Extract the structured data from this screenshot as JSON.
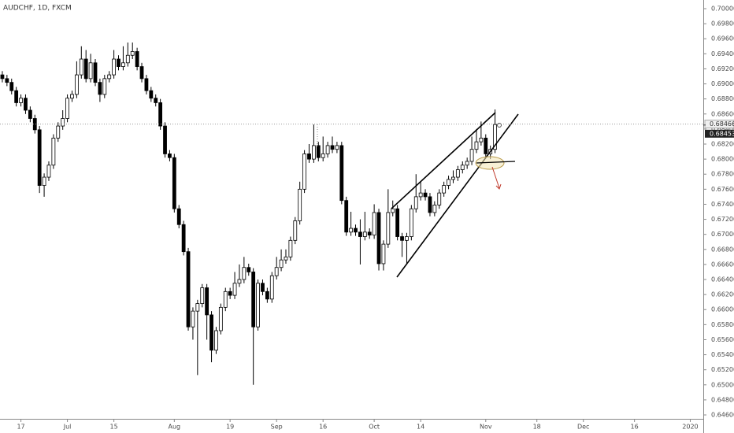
{
  "chart_data": {
    "type": "candlestick",
    "title": "AUDCHF, 1D, FXCM",
    "up_color": "#ffffff",
    "down_color": "#000000",
    "open": [
      0.6912,
      0.6907,
      0.6902,
      0.6891,
      0.6875,
      0.6881,
      0.6865,
      0.6854,
      0.6839,
      0.6765,
      0.6776,
      0.6792,
      0.6828,
      0.6844,
      0.6854,
      0.6881,
      0.6886,
      0.6912,
      0.6933,
      0.6907,
      0.6928,
      0.6902,
      0.6886,
      0.6907,
      0.6912,
      0.6933,
      0.6923,
      0.6928,
      0.6938,
      0.6943,
      0.6923,
      0.6907,
      0.6891,
      0.6881,
      0.6875,
      0.6844,
      0.6807,
      0.6802,
      0.6734,
      0.6713,
      0.6677,
      0.6577,
      0.6598,
      0.6608,
      0.6629,
      0.6593,
      0.6546,
      0.6572,
      0.6603,
      0.6624,
      0.6619,
      0.6635,
      0.664,
      0.6656,
      0.665,
      0.6577,
      0.6635,
      0.6624,
      0.6614,
      0.6645,
      0.6656,
      0.6666,
      0.667,
      0.6692,
      0.6718,
      0.676,
      0.6807,
      0.68,
      0.6818,
      0.6802,
      0.6807,
      0.6818,
      0.6813,
      0.6818,
      0.6745,
      0.6703,
      0.6708,
      0.6703,
      0.6697,
      0.6703,
      0.6699,
      0.6729,
      0.6661,
      0.6687,
      0.6729,
      0.6734,
      0.6697,
      0.6692,
      0.6697,
      0.6734,
      0.675,
      0.6755,
      0.675,
      0.6729,
      0.6739,
      0.6755,
      0.6765,
      0.6773,
      0.6776,
      0.6786,
      0.6792,
      0.6797,
      0.6813,
      0.6823,
      0.6828,
      0.6807,
      0.6813
    ],
    "high": [
      0.6917,
      0.6912,
      0.6907,
      0.6896,
      0.6886,
      0.6886,
      0.687,
      0.6859,
      0.6844,
      0.6781,
      0.6797,
      0.6833,
      0.6849,
      0.6865,
      0.6886,
      0.6891,
      0.693,
      0.695,
      0.6945,
      0.694,
      0.6933,
      0.6907,
      0.6912,
      0.6917,
      0.6945,
      0.6938,
      0.695,
      0.6955,
      0.6955,
      0.6948,
      0.6928,
      0.6912,
      0.6896,
      0.6886,
      0.688,
      0.6849,
      0.6812,
      0.6807,
      0.6739,
      0.6718,
      0.6682,
      0.6603,
      0.6613,
      0.6634,
      0.6634,
      0.6598,
      0.6577,
      0.6608,
      0.6629,
      0.6629,
      0.665,
      0.666,
      0.667,
      0.6661,
      0.6655,
      0.664,
      0.664,
      0.6629,
      0.665,
      0.667,
      0.668,
      0.668,
      0.6697,
      0.6723,
      0.677,
      0.6812,
      0.682,
      0.6846,
      0.6823,
      0.683,
      0.6823,
      0.683,
      0.6823,
      0.6823,
      0.675,
      0.673,
      0.6713,
      0.672,
      0.673,
      0.6708,
      0.674,
      0.6734,
      0.6692,
      0.676,
      0.6745,
      0.6739,
      0.6702,
      0.6702,
      0.6739,
      0.678,
      0.677,
      0.676,
      0.6755,
      0.6744,
      0.676,
      0.677,
      0.6778,
      0.6785,
      0.6791,
      0.6797,
      0.6802,
      0.683,
      0.684,
      0.685,
      0.6833,
      0.6818,
      0.6866
    ],
    "low": [
      0.6902,
      0.6897,
      0.6886,
      0.687,
      0.687,
      0.686,
      0.6849,
      0.6834,
      0.6755,
      0.675,
      0.6771,
      0.6787,
      0.6823,
      0.6839,
      0.6849,
      0.6876,
      0.6881,
      0.6907,
      0.6902,
      0.6902,
      0.6897,
      0.6876,
      0.6881,
      0.6902,
      0.6907,
      0.6918,
      0.6918,
      0.6923,
      0.6933,
      0.6918,
      0.6902,
      0.6886,
      0.6876,
      0.687,
      0.6839,
      0.6802,
      0.6797,
      0.6729,
      0.6708,
      0.6672,
      0.6572,
      0.656,
      0.6513,
      0.6603,
      0.656,
      0.653,
      0.6541,
      0.6567,
      0.6598,
      0.6614,
      0.6614,
      0.663,
      0.6635,
      0.6645,
      0.65,
      0.6572,
      0.6619,
      0.6609,
      0.6609,
      0.664,
      0.6651,
      0.6661,
      0.6665,
      0.6687,
      0.6713,
      0.6755,
      0.6795,
      0.6795,
      0.6797,
      0.6797,
      0.6802,
      0.6808,
      0.6808,
      0.674,
      0.6698,
      0.6698,
      0.6698,
      0.666,
      0.6692,
      0.6694,
      0.6694,
      0.6652,
      0.6652,
      0.6682,
      0.6724,
      0.6692,
      0.667,
      0.666,
      0.6692,
      0.6729,
      0.6745,
      0.6745,
      0.6724,
      0.6724,
      0.6734,
      0.675,
      0.676,
      0.6768,
      0.6771,
      0.6781,
      0.6787,
      0.6792,
      0.6808,
      0.6818,
      0.6802,
      0.68,
      0.6808
    ],
    "close": [
      0.6907,
      0.6902,
      0.6891,
      0.6875,
      0.6881,
      0.6865,
      0.6854,
      0.6839,
      0.6765,
      0.6776,
      0.6792,
      0.6828,
      0.6844,
      0.6854,
      0.6881,
      0.6886,
      0.6912,
      0.6933,
      0.6907,
      0.6928,
      0.6902,
      0.6886,
      0.6907,
      0.6912,
      0.6933,
      0.6923,
      0.6928,
      0.6938,
      0.6943,
      0.6923,
      0.6907,
      0.6891,
      0.6881,
      0.6875,
      0.6844,
      0.6807,
      0.6802,
      0.6734,
      0.6713,
      0.6677,
      0.6577,
      0.6598,
      0.6608,
      0.6629,
      0.6593,
      0.6546,
      0.6572,
      0.6603,
      0.6624,
      0.6619,
      0.6635,
      0.664,
      0.6656,
      0.665,
      0.6577,
      0.6635,
      0.6624,
      0.6614,
      0.6645,
      0.6656,
      0.6666,
      0.667,
      0.6692,
      0.6718,
      0.676,
      0.6807,
      0.68,
      0.6818,
      0.6802,
      0.6807,
      0.6818,
      0.6813,
      0.6818,
      0.6745,
      0.6703,
      0.6708,
      0.6703,
      0.6697,
      0.6703,
      0.6699,
      0.6729,
      0.6661,
      0.6687,
      0.6729,
      0.6734,
      0.6697,
      0.6692,
      0.6697,
      0.6734,
      0.675,
      0.6755,
      0.675,
      0.6729,
      0.6739,
      0.6755,
      0.6765,
      0.6773,
      0.6776,
      0.6786,
      0.6792,
      0.6797,
      0.6813,
      0.6823,
      0.6828,
      0.6807,
      0.6813,
      0.6846
    ],
    "xlim": [
      -0.5,
      150.8
    ],
    "xticks": [
      {
        "value": 4,
        "label": "17"
      },
      {
        "value": 14,
        "label": "Jul"
      },
      {
        "value": 24,
        "label": "15"
      },
      {
        "value": 37,
        "label": "Aug"
      },
      {
        "value": 49,
        "label": "19"
      },
      {
        "value": 59,
        "label": "Sep"
      },
      {
        "value": 69,
        "label": "16"
      },
      {
        "value": 80,
        "label": "Oct"
      },
      {
        "value": 90,
        "label": "14"
      },
      {
        "value": 104,
        "label": "Nov"
      },
      {
        "value": 115,
        "label": "18"
      },
      {
        "value": 125,
        "label": "Dec"
      },
      {
        "value": 136,
        "label": "16"
      },
      {
        "value": 148,
        "label": "2020"
      }
    ],
    "ylim": [
      0.64548,
      0.70115
    ],
    "yticks": [
      {
        "value": 0.646,
        "label": "0.64600"
      },
      {
        "value": 0.648,
        "label": "0.64800"
      },
      {
        "value": 0.65,
        "label": "0.65000"
      },
      {
        "value": 0.652,
        "label": "0.65200"
      },
      {
        "value": 0.654,
        "label": "0.65400"
      },
      {
        "value": 0.656,
        "label": "0.65600"
      },
      {
        "value": 0.658,
        "label": "0.65800"
      },
      {
        "value": 0.66,
        "label": "0.66000"
      },
      {
        "value": 0.662,
        "label": "0.66200"
      },
      {
        "value": 0.664,
        "label": "0.66400"
      },
      {
        "value": 0.666,
        "label": "0.66600"
      },
      {
        "value": 0.668,
        "label": "0.66800"
      },
      {
        "value": 0.67,
        "label": "0.67000"
      },
      {
        "value": 0.672,
        "label": "0.67200"
      },
      {
        "value": 0.674,
        "label": "0.67400"
      },
      {
        "value": 0.676,
        "label": "0.67600"
      },
      {
        "value": 0.678,
        "label": "0.67800"
      },
      {
        "value": 0.68,
        "label": "0.68000"
      },
      {
        "value": 0.682,
        "label": "0.68200"
      },
      {
        "value": 0.684,
        "label": "0.68400"
      },
      {
        "value": 0.686,
        "label": "0.68600"
      },
      {
        "value": 0.688,
        "label": "0.68800"
      },
      {
        "value": 0.69,
        "label": "0.69000"
      },
      {
        "value": 0.692,
        "label": "0.69200"
      },
      {
        "value": 0.694,
        "label": "0.69400"
      },
      {
        "value": 0.696,
        "label": "0.69600"
      },
      {
        "value": 0.698,
        "label": "0.69800"
      },
      {
        "value": 0.7,
        "label": "0.70000"
      }
    ],
    "price_lines": [
      {
        "value": 0.68466,
        "label": "0.68466"
      },
      {
        "value": 0.68453,
        "label": "0.68453"
      }
    ]
  }
}
